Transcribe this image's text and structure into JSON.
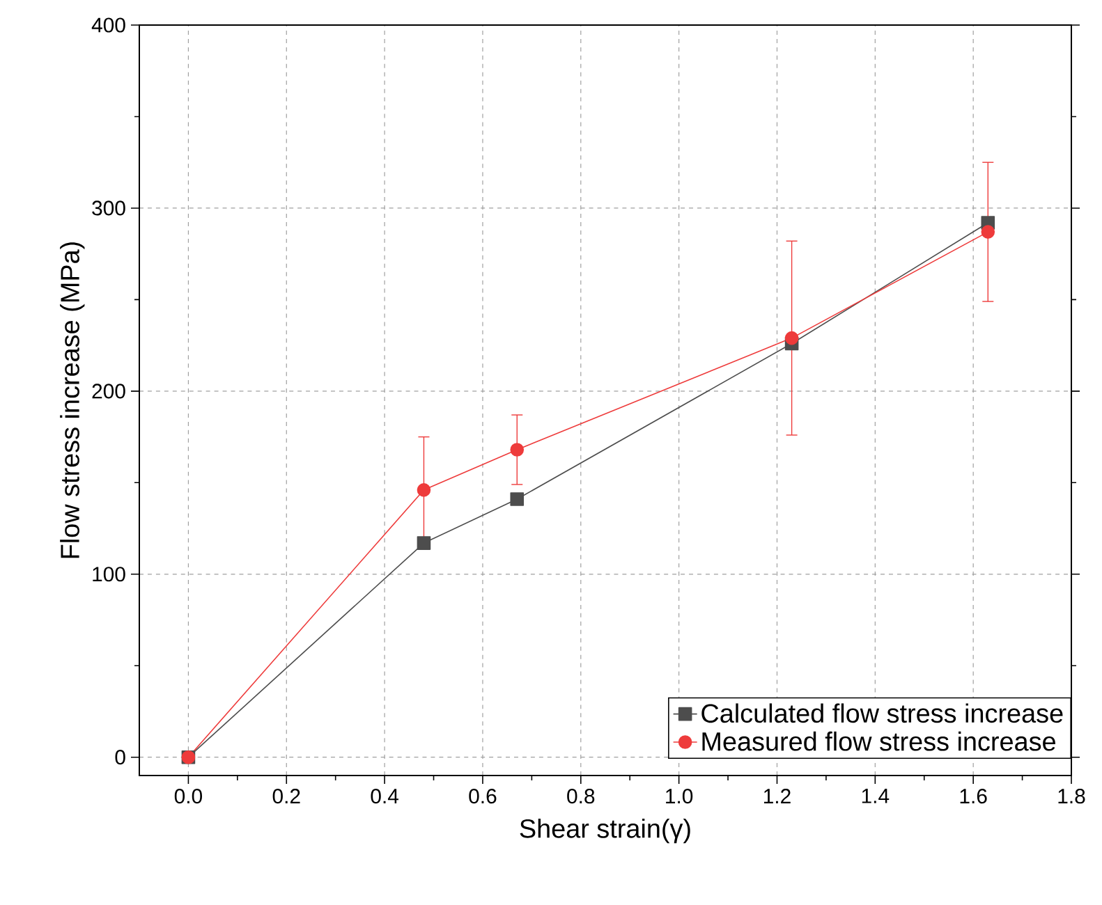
{
  "chart_data": {
    "type": "line",
    "xlabel": "Shear strain(γ)",
    "ylabel": "Flow stress increase (MPa)",
    "x": [
      0,
      0.48,
      0.67,
      1.23,
      1.63
    ],
    "series": [
      {
        "name": "Calculated  flow stress increase",
        "color": "#4d4d4d",
        "marker": "square",
        "values": [
          0,
          117,
          141,
          226,
          292
        ]
      },
      {
        "name": "Measured flow stress increase",
        "color": "#ee3b3b",
        "marker": "circle",
        "values": [
          0,
          146,
          168,
          229,
          287
        ],
        "errors": [
          null,
          29,
          19,
          53,
          38
        ]
      }
    ],
    "xlim": [
      -0.1,
      1.8
    ],
    "ylim": [
      -10,
      400
    ],
    "xticks": [
      {
        "value": 0,
        "label": "0.0"
      },
      0.2,
      0.4,
      0.6,
      0.8,
      {
        "value": 1,
        "label": "1.0"
      },
      1.2,
      1.4,
      1.6,
      1.8
    ],
    "yticks": [
      0,
      100,
      200,
      300,
      400
    ],
    "grid": true,
    "legend": "bottom right",
    "line_style": "solid"
  }
}
